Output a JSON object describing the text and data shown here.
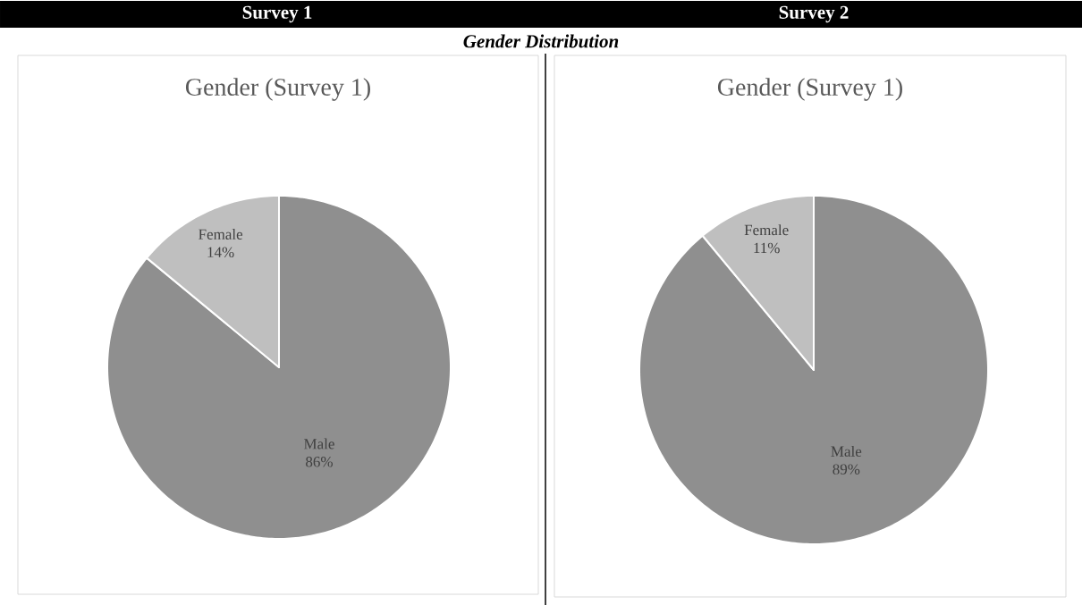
{
  "chart_data": [
    {
      "type": "pie",
      "title": "Gender (Survey 1)",
      "annotations": [
        "Survey 1",
        "Gender Distribution"
      ],
      "categories": [
        "Male",
        "Female"
      ],
      "values": [
        86,
        14
      ],
      "value_labels": [
        "86%",
        "14%"
      ],
      "colors": [
        "#8f8f8f",
        "#bfbfbf"
      ]
    },
    {
      "type": "pie",
      "title": "Gender (Survey 1)",
      "annotations": [
        "Survey 2"
      ],
      "categories": [
        "Male",
        "Female"
      ],
      "values": [
        89,
        11
      ],
      "value_labels": [
        "89%",
        "11%"
      ],
      "colors": [
        "#8f8f8f",
        "#bfbfbf"
      ]
    }
  ]
}
